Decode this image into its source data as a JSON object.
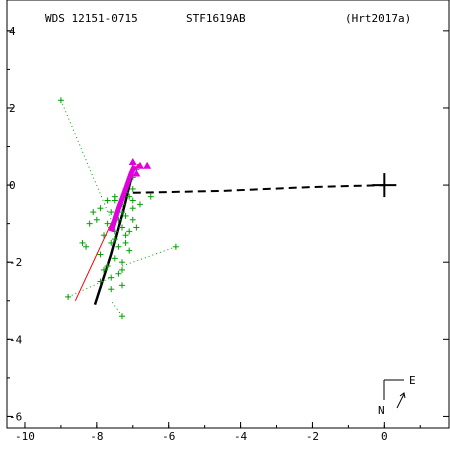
{
  "header": {
    "wds": "WDS 12151-0715",
    "discoverer": "STF1619AB",
    "orbit_ref": "(Hrt2017a)"
  },
  "compass": {
    "east": "E",
    "north": "N"
  },
  "colors": {
    "measures": "#00a000",
    "orbit_red": "#ff0000",
    "recent": "#e000e0",
    "axes": "#000000"
  },
  "chart_data": {
    "type": "scatter",
    "xlim": [
      -10.5,
      1.8
    ],
    "ylim": [
      -6.3,
      4.8
    ],
    "x_ticks": [
      -10,
      -8,
      -6,
      -4,
      -2,
      0
    ],
    "y_ticks": [
      4,
      2,
      0,
      -2,
      -4,
      -6
    ],
    "x_tick_labels": [
      "-10",
      "-8",
      "-6",
      "-4",
      "-2",
      "0"
    ],
    "y_tick_labels": [
      "4",
      "2",
      "0",
      "-2",
      "-4",
      "-6"
    ],
    "primary": [
      0,
      0
    ],
    "measures": [
      [
        -7.0,
        -0.1
      ],
      [
        -7.1,
        -0.3
      ],
      [
        -7.3,
        -0.5
      ],
      [
        -7.2,
        -0.2
      ],
      [
        -7.5,
        -0.4
      ],
      [
        -7.6,
        -0.7
      ],
      [
        -7.4,
        -0.9
      ],
      [
        -7.7,
        -1.0
      ],
      [
        -7.2,
        -0.8
      ],
      [
        -7.0,
        -0.6
      ],
      [
        -7.3,
        -1.1
      ],
      [
        -7.5,
        -1.2
      ],
      [
        -7.8,
        -1.3
      ],
      [
        -7.1,
        -1.2
      ],
      [
        -7.6,
        -1.5
      ],
      [
        -7.4,
        -1.6
      ],
      [
        -7.2,
        -1.5
      ],
      [
        -7.9,
        -1.8
      ],
      [
        -7.5,
        -1.9
      ],
      [
        -7.3,
        -2.0
      ],
      [
        -7.7,
        -2.1
      ],
      [
        -7.4,
        -2.3
      ],
      [
        -7.6,
        -2.4
      ],
      [
        -7.3,
        -2.2
      ],
      [
        -8.0,
        -0.9
      ],
      [
        -8.2,
        -1.0
      ],
      [
        -8.3,
        -1.6
      ],
      [
        -8.4,
        -1.5
      ],
      [
        -7.9,
        -0.6
      ],
      [
        -8.1,
        -0.7
      ],
      [
        -7.0,
        -0.9
      ],
      [
        -6.9,
        -1.1
      ],
      [
        -7.2,
        -1.3
      ],
      [
        -6.8,
        -0.5
      ],
      [
        -6.5,
        -0.3
      ],
      [
        -7.0,
        0.2
      ],
      [
        -6.9,
        0.4
      ],
      [
        -7.5,
        -1.4
      ],
      [
        -7.8,
        -2.2
      ],
      [
        -7.3,
        -2.6
      ],
      [
        -7.6,
        -2.7
      ],
      [
        -7.9,
        -2.5
      ],
      [
        -7.5,
        -0.3
      ],
      [
        -7.2,
        -0.1
      ],
      [
        -7.7,
        -0.4
      ],
      [
        -7.0,
        -0.4
      ],
      [
        -7.3,
        -0.7
      ],
      [
        -7.6,
        -1.1
      ],
      [
        -7.1,
        -1.7
      ],
      [
        -9.0,
        2.2
      ],
      [
        -8.8,
        -2.9
      ],
      [
        -5.8,
        -1.6
      ],
      [
        -7.3,
        -3.4
      ]
    ],
    "outliers": [
      {
        "obs": [
          -9.0,
          2.2
        ],
        "calc": [
          -7.6,
          -0.9
        ]
      },
      {
        "obs": [
          -8.8,
          -2.9
        ],
        "calc": [
          -7.6,
          -2.4
        ]
      },
      {
        "obs": [
          -5.8,
          -1.6
        ],
        "calc": [
          -7.3,
          -2.1
        ]
      },
      {
        "obs": [
          -7.3,
          -3.4
        ],
        "calc": [
          -7.6,
          -3.0
        ]
      }
    ],
    "recent_arc": [
      [
        -7.6,
        -1.2
      ],
      [
        -7.4,
        -0.6
      ],
      [
        -7.2,
        -0.1
      ],
      [
        -7.05,
        0.3
      ],
      [
        -6.95,
        0.5
      ]
    ],
    "recent_triangles": [
      [
        -7.0,
        0.6
      ],
      [
        -6.8,
        0.5
      ],
      [
        -6.6,
        0.5
      ],
      [
        -6.9,
        0.3
      ]
    ],
    "red_orbit": [
      [
        -8.6,
        -3.0
      ],
      [
        -7.9,
        -1.6
      ],
      [
        -7.4,
        -0.6
      ],
      [
        -7.0,
        0.3
      ],
      [
        -6.85,
        0.55
      ]
    ],
    "black_orbit": [
      [
        -8.05,
        -3.1
      ],
      [
        -7.6,
        -1.8
      ],
      [
        -7.25,
        -0.6
      ],
      [
        -7.0,
        0.35
      ]
    ],
    "node_line": [
      [
        -7.0,
        -0.2
      ],
      [
        -4.5,
        -0.15
      ],
      [
        -2.0,
        -0.05
      ],
      [
        0.0,
        0.0
      ]
    ]
  }
}
